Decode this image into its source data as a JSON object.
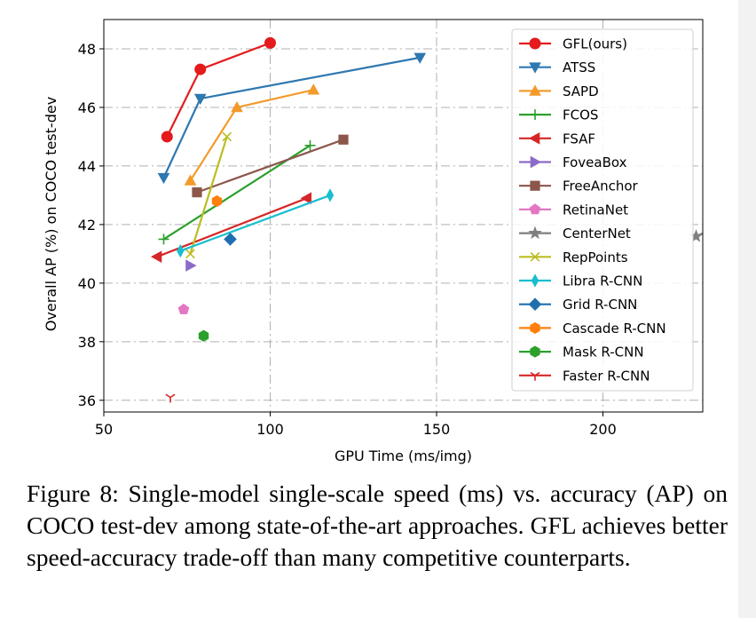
{
  "chart_data": {
    "type": "line",
    "xlabel": "GPU Time (ms/img)",
    "ylabel": "Overall AP (%) on COCO test-dev",
    "xlim": [
      50,
      230
    ],
    "ylim": [
      35.6,
      49.0
    ],
    "xticks": [
      50,
      100,
      150,
      200
    ],
    "yticks": [
      36,
      38,
      40,
      42,
      44,
      46,
      48
    ],
    "grid": true,
    "legend_position": "top-right",
    "series": [
      {
        "name": "GFL(ours)",
        "color": "#e41a1c",
        "marker": "circle",
        "points": [
          [
            69,
            45.0
          ],
          [
            79,
            47.3
          ],
          [
            100,
            48.2
          ]
        ]
      },
      {
        "name": "ATSS",
        "color": "#2e78b0",
        "marker": "triangle-down",
        "points": [
          [
            68,
            43.6
          ],
          [
            79,
            46.3
          ],
          [
            145,
            47.7
          ]
        ]
      },
      {
        "name": "SAPD",
        "color": "#f39a2b",
        "marker": "triangle-up",
        "points": [
          [
            76,
            43.5
          ],
          [
            90,
            46.0
          ],
          [
            113,
            46.6
          ]
        ]
      },
      {
        "name": "FCOS",
        "color": "#2ca02c",
        "marker": "plus",
        "points": [
          [
            68,
            41.5
          ],
          [
            112,
            44.7
          ]
        ]
      },
      {
        "name": "FSAF",
        "color": "#d62728",
        "marker": "triangle-left",
        "points": [
          [
            66,
            40.9
          ],
          [
            111,
            42.9
          ]
        ]
      },
      {
        "name": "FoveaBox",
        "color": "#8c6bc8",
        "marker": "triangle-right",
        "points": [
          [
            76,
            40.6
          ]
        ]
      },
      {
        "name": "FreeAnchor",
        "color": "#8c564b",
        "marker": "square",
        "points": [
          [
            78,
            43.1
          ],
          [
            122,
            44.9
          ]
        ]
      },
      {
        "name": "RetinaNet",
        "color": "#e377c2",
        "marker": "pentagon",
        "points": [
          [
            74,
            39.1
          ]
        ]
      },
      {
        "name": "CenterNet",
        "color": "#7f7f7f",
        "marker": "star",
        "points": [
          [
            228,
            41.6
          ],
          [
            232,
            41.8
          ]
        ]
      },
      {
        "name": "RepPoints",
        "color": "#bcbd22",
        "marker": "x",
        "points": [
          [
            76,
            41.0
          ],
          [
            87,
            45.0
          ]
        ]
      },
      {
        "name": "Libra R-CNN",
        "color": "#17becf",
        "marker": "thin-diamond",
        "points": [
          [
            73,
            41.1
          ],
          [
            118,
            43.0
          ]
        ]
      },
      {
        "name": "Grid R-CNN",
        "color": "#1f6fb0",
        "marker": "diamond",
        "points": [
          [
            88,
            41.5
          ]
        ]
      },
      {
        "name": "Cascade R-CNN",
        "color": "#ff7f0e",
        "marker": "hexagon",
        "points": [
          [
            84,
            42.8
          ]
        ]
      },
      {
        "name": "Mask R-CNN",
        "color": "#2ca02c",
        "marker": "hexagon",
        "points": [
          [
            80,
            38.2
          ]
        ]
      },
      {
        "name": "Faster R-CNN",
        "color": "#d62728",
        "marker": "tri-down",
        "points": [
          [
            70,
            36.1
          ]
        ]
      }
    ]
  },
  "caption": "Figure 8: Single-model single-scale speed (ms) vs.  accuracy (AP) on COCO test-dev among state-of-the-art approaches. GFL achieves better speed-accuracy trade-off than many competitive counterparts."
}
